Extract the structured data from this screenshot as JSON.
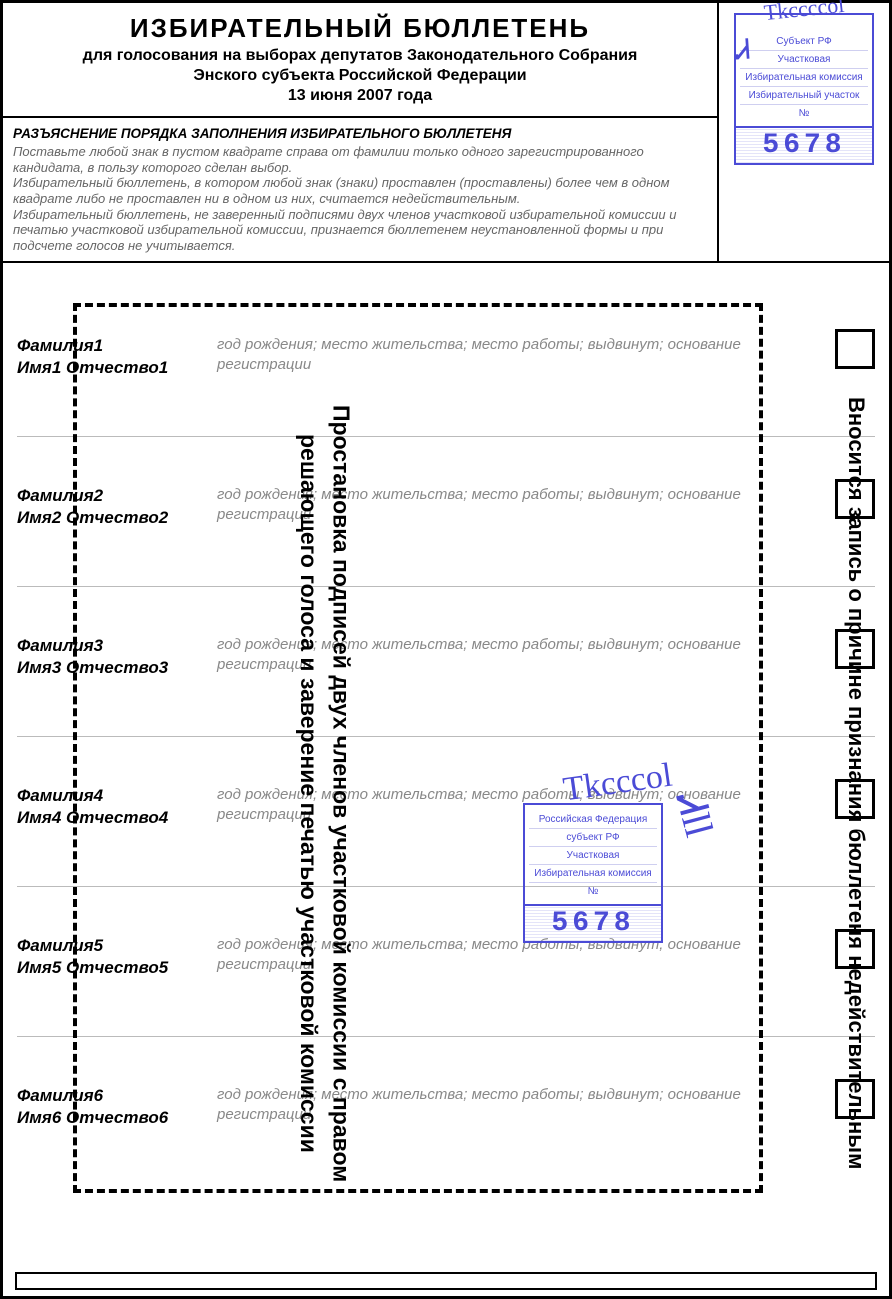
{
  "header": {
    "title": "ИЗБИРАТЕЛЬНЫЙ  БЮЛЛЕТЕНЬ",
    "subtitle1": "для голосования на выборах депутатов Законодательного Собрания",
    "subtitle2": "Энского субъекта Российской Федерации",
    "date": "13 июня 2007 года"
  },
  "instructions": {
    "title": "РАЗЪЯСНЕНИЕ ПОРЯДКА ЗАПОЛНЕНИЯ ИЗБИРАТЕЛЬНОГО БЮЛЛЕТЕНЯ",
    "p1": "Поставьте любой знак в пустом квадрате справа от фамилии только одного зарегистрированного кандидата, в пользу которого сделан выбор.",
    "p2": "Избирательный бюллетень, в котором любой знак (знаки) проставлен (проставлены) более чем в одном квадрате либо не проставлен ни в одном из них, считается недействительным.",
    "p3": "Избирательный бюллетень, не заверенный подписями двух членов участковой избирательной комиссии и печатью участковой избирательной комиссии, признается бюллетенем неустановленной формы и при подсчете голосов не учитывается."
  },
  "stamp": {
    "line1": "Субъект РФ",
    "line2": "Участковая",
    "line3": "Избирательная комиссия",
    "line4": "Избирательный участок",
    "line5": "№",
    "number": "5678"
  },
  "stamp2": {
    "line1": "Российская Федерация",
    "line2": "субъект РФ",
    "line3": "Участковая",
    "line4": "Избирательная комиссия",
    "line5": "№",
    "number": "5678"
  },
  "candidates": [
    {
      "surname": "Фамилия1",
      "name": "Имя1 Отчество1",
      "info": "год рождения; место жительства; место работы; выдвинут; основание регистрации"
    },
    {
      "surname": "Фамилия2",
      "name": "Имя2 Отчество2",
      "info": "год рождения; место жительства; место работы; выдвинут; основание регистрации"
    },
    {
      "surname": "Фамилия3",
      "name": "Имя3 Отчество3",
      "info": "год рождения; место жительства; место работы; выдвинут; основание регистрации"
    },
    {
      "surname": "Фамилия4",
      "name": "Имя4 Отчество4",
      "info": "год рождения; место жительства; место работы; выдвинут; основание регистрации"
    },
    {
      "surname": "Фамилия5",
      "name": "Имя5 Отчество5",
      "info": "год рождения; место жительства; место работы; выдвинут; основание регистрации"
    },
    {
      "surname": "Фамилия6",
      "name": "Имя6 Отчество6",
      "info": "год рождения; место жительства; место работы; выдвинут; основание регистрации"
    }
  ],
  "overlay": {
    "right_text": "Вносится запись о причине признания бюллетеня недействительным",
    "center_text": "Простановка подписей двух членов участковой комиссии с правом решающего голоса и заверение печатью участковой комиссии"
  },
  "colors": {
    "stamp": "#4b4bd6",
    "border": "#000000",
    "muted": "#888888"
  }
}
